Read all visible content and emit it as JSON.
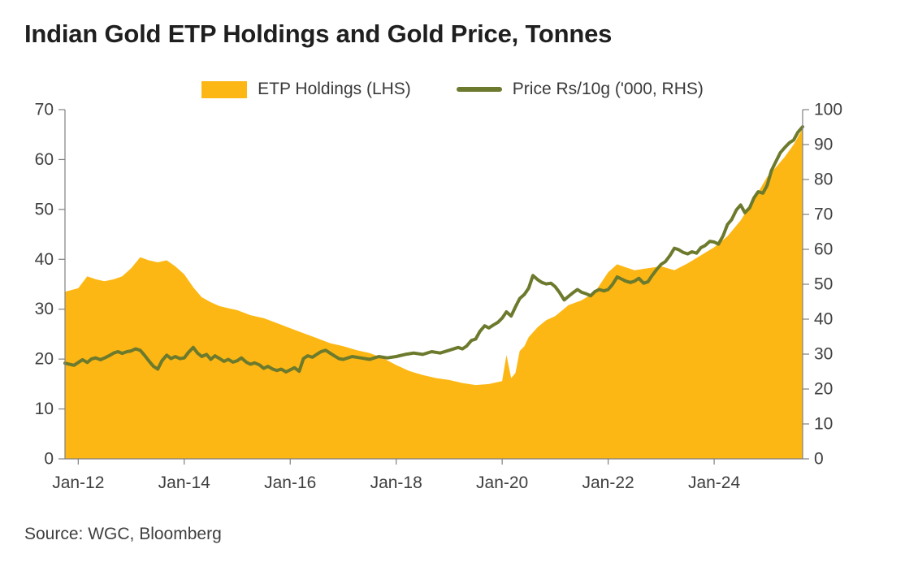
{
  "title": "Indian Gold ETP Holdings and Gold Price, Tonnes",
  "source": "Source: WGC, Bloomberg",
  "legend": [
    {
      "label": "ETP Holdings (LHS)",
      "color": "#FCB714",
      "shape": "area-swatch"
    },
    {
      "label": "Price Rs/10g ('000, RHS)",
      "color": "#6C7A2D",
      "shape": "line-swatch"
    }
  ],
  "colors": {
    "axis_line": "#808080",
    "axis_text": "#3F3F3F",
    "title_text": "#1F1F1F",
    "background": "#FFFFFF",
    "area": "#FCB714",
    "line": "#6C7A2D"
  },
  "chart_data": {
    "type": "area+line",
    "title": "Indian Gold ETP Holdings and Gold Price, Tonnes",
    "grid": false,
    "legend_position": "top",
    "x_axis": {
      "range": [
        2011.75,
        2025.67
      ],
      "tick_values": [
        2012,
        2014,
        2016,
        2018,
        2020,
        2022,
        2024
      ],
      "tick_labels": [
        "Jan-12",
        "Jan-14",
        "Jan-16",
        "Jan-18",
        "Jan-20",
        "Jan-22",
        "Jan-24"
      ]
    },
    "left_axis": {
      "series": "ETP Holdings (LHS)",
      "unit": "tonnes",
      "range": [
        0,
        70
      ],
      "ticks": [
        0,
        10,
        20,
        30,
        40,
        50,
        60,
        70
      ]
    },
    "right_axis": {
      "series": "Price Rs/10g ('000, RHS)",
      "unit": "'000 Rs per 10g",
      "range": [
        0,
        100
      ],
      "ticks": [
        0,
        10,
        20,
        30,
        40,
        50,
        60,
        70,
        80,
        90,
        100
      ]
    },
    "series": [
      {
        "name": "ETP Holdings (LHS)",
        "type": "area",
        "axis": "left",
        "color": "#FCB714",
        "points": [
          [
            2011.75,
            33.5
          ],
          [
            2012.0,
            34.2
          ],
          [
            2012.17,
            36.6
          ],
          [
            2012.33,
            36.0
          ],
          [
            2012.5,
            35.6
          ],
          [
            2012.67,
            36.0
          ],
          [
            2012.83,
            36.6
          ],
          [
            2013.0,
            38.2
          ],
          [
            2013.17,
            40.4
          ],
          [
            2013.33,
            39.8
          ],
          [
            2013.5,
            39.4
          ],
          [
            2013.67,
            39.8
          ],
          [
            2013.83,
            38.6
          ],
          [
            2014.0,
            37.0
          ],
          [
            2014.17,
            34.4
          ],
          [
            2014.33,
            32.4
          ],
          [
            2014.5,
            31.4
          ],
          [
            2014.67,
            30.6
          ],
          [
            2014.83,
            30.2
          ],
          [
            2015.0,
            29.8
          ],
          [
            2015.25,
            28.8
          ],
          [
            2015.5,
            28.2
          ],
          [
            2015.75,
            27.2
          ],
          [
            2016.0,
            26.2
          ],
          [
            2016.25,
            25.2
          ],
          [
            2016.5,
            24.2
          ],
          [
            2016.75,
            23.2
          ],
          [
            2017.0,
            22.6
          ],
          [
            2017.25,
            21.8
          ],
          [
            2017.5,
            21.2
          ],
          [
            2017.75,
            20.2
          ],
          [
            2018.0,
            18.8
          ],
          [
            2018.25,
            17.6
          ],
          [
            2018.5,
            16.8
          ],
          [
            2018.75,
            16.2
          ],
          [
            2019.0,
            15.8
          ],
          [
            2019.25,
            15.2
          ],
          [
            2019.5,
            14.8
          ],
          [
            2019.75,
            15.0
          ],
          [
            2020.0,
            15.6
          ],
          [
            2020.08,
            20.8
          ],
          [
            2020.17,
            16.2
          ],
          [
            2020.25,
            17.2
          ],
          [
            2020.33,
            21.6
          ],
          [
            2020.42,
            22.6
          ],
          [
            2020.5,
            24.4
          ],
          [
            2020.67,
            26.4
          ],
          [
            2020.83,
            27.8
          ],
          [
            2021.0,
            28.6
          ],
          [
            2021.25,
            30.8
          ],
          [
            2021.5,
            31.8
          ],
          [
            2021.75,
            33.4
          ],
          [
            2022.0,
            37.4
          ],
          [
            2022.17,
            39.0
          ],
          [
            2022.33,
            38.4
          ],
          [
            2022.5,
            37.8
          ],
          [
            2022.75,
            38.2
          ],
          [
            2023.0,
            38.6
          ],
          [
            2023.25,
            37.8
          ],
          [
            2023.5,
            39.2
          ],
          [
            2023.75,
            40.8
          ],
          [
            2024.0,
            42.4
          ],
          [
            2024.25,
            44.6
          ],
          [
            2024.5,
            47.8
          ],
          [
            2024.75,
            52.0
          ],
          [
            2025.0,
            56.5
          ],
          [
            2025.17,
            58.5
          ],
          [
            2025.33,
            60.5
          ],
          [
            2025.5,
            63.0
          ],
          [
            2025.67,
            66.2
          ]
        ]
      },
      {
        "name": "Price Rs/10g ('000, RHS)",
        "type": "line",
        "axis": "right",
        "color": "#6C7A2D",
        "stroke_width": 4,
        "points": [
          [
            2011.75,
            27.4
          ],
          [
            2011.92,
            26.8
          ],
          [
            2012.0,
            27.6
          ],
          [
            2012.08,
            28.4
          ],
          [
            2012.17,
            27.6
          ],
          [
            2012.25,
            28.6
          ],
          [
            2012.33,
            28.9
          ],
          [
            2012.42,
            28.4
          ],
          [
            2012.5,
            28.9
          ],
          [
            2012.58,
            29.5
          ],
          [
            2012.67,
            30.3
          ],
          [
            2012.75,
            30.7
          ],
          [
            2012.83,
            30.2
          ],
          [
            2012.92,
            30.7
          ],
          [
            2013.0,
            30.9
          ],
          [
            2013.08,
            31.5
          ],
          [
            2013.17,
            31.1
          ],
          [
            2013.25,
            29.7
          ],
          [
            2013.33,
            28.1
          ],
          [
            2013.42,
            26.5
          ],
          [
            2013.5,
            25.7
          ],
          [
            2013.58,
            28.1
          ],
          [
            2013.67,
            29.7
          ],
          [
            2013.75,
            28.7
          ],
          [
            2013.83,
            29.3
          ],
          [
            2013.92,
            28.7
          ],
          [
            2014.0,
            28.9
          ],
          [
            2014.08,
            30.5
          ],
          [
            2014.17,
            31.9
          ],
          [
            2014.25,
            30.3
          ],
          [
            2014.33,
            29.3
          ],
          [
            2014.42,
            29.9
          ],
          [
            2014.5,
            28.5
          ],
          [
            2014.58,
            29.5
          ],
          [
            2014.67,
            28.7
          ],
          [
            2014.75,
            27.9
          ],
          [
            2014.83,
            28.5
          ],
          [
            2014.92,
            27.7
          ],
          [
            2015.0,
            28.1
          ],
          [
            2015.08,
            28.9
          ],
          [
            2015.17,
            27.7
          ],
          [
            2015.25,
            27.1
          ],
          [
            2015.33,
            27.5
          ],
          [
            2015.42,
            26.9
          ],
          [
            2015.5,
            25.9
          ],
          [
            2015.58,
            26.5
          ],
          [
            2015.67,
            25.7
          ],
          [
            2015.75,
            25.3
          ],
          [
            2015.83,
            25.7
          ],
          [
            2015.92,
            24.9
          ],
          [
            2016.0,
            25.5
          ],
          [
            2016.08,
            26.1
          ],
          [
            2016.17,
            25.1
          ],
          [
            2016.25,
            28.7
          ],
          [
            2016.33,
            29.5
          ],
          [
            2016.42,
            29.1
          ],
          [
            2016.5,
            29.9
          ],
          [
            2016.58,
            30.7
          ],
          [
            2016.67,
            31.1
          ],
          [
            2016.75,
            30.3
          ],
          [
            2016.83,
            29.5
          ],
          [
            2016.92,
            28.7
          ],
          [
            2017.0,
            28.5
          ],
          [
            2017.17,
            29.3
          ],
          [
            2017.33,
            28.9
          ],
          [
            2017.5,
            28.5
          ],
          [
            2017.67,
            29.3
          ],
          [
            2017.83,
            28.9
          ],
          [
            2018.0,
            29.3
          ],
          [
            2018.17,
            29.9
          ],
          [
            2018.33,
            30.3
          ],
          [
            2018.5,
            29.9
          ],
          [
            2018.67,
            30.7
          ],
          [
            2018.83,
            30.3
          ],
          [
            2019.0,
            31.1
          ],
          [
            2019.17,
            31.9
          ],
          [
            2019.25,
            31.5
          ],
          [
            2019.33,
            32.3
          ],
          [
            2019.42,
            33.9
          ],
          [
            2019.5,
            34.3
          ],
          [
            2019.58,
            36.5
          ],
          [
            2019.67,
            38.1
          ],
          [
            2019.75,
            37.5
          ],
          [
            2019.83,
            38.3
          ],
          [
            2019.92,
            39.1
          ],
          [
            2020.0,
            40.3
          ],
          [
            2020.08,
            42.1
          ],
          [
            2020.17,
            40.9
          ],
          [
            2020.25,
            43.5
          ],
          [
            2020.33,
            45.9
          ],
          [
            2020.42,
            47.1
          ],
          [
            2020.5,
            48.9
          ],
          [
            2020.58,
            52.5
          ],
          [
            2020.67,
            51.3
          ],
          [
            2020.75,
            50.5
          ],
          [
            2020.83,
            50.1
          ],
          [
            2020.92,
            50.3
          ],
          [
            2021.0,
            49.3
          ],
          [
            2021.08,
            47.7
          ],
          [
            2021.17,
            45.5
          ],
          [
            2021.25,
            46.5
          ],
          [
            2021.33,
            47.5
          ],
          [
            2021.42,
            48.5
          ],
          [
            2021.5,
            47.7
          ],
          [
            2021.58,
            47.3
          ],
          [
            2021.67,
            46.7
          ],
          [
            2021.75,
            47.9
          ],
          [
            2021.83,
            48.5
          ],
          [
            2021.92,
            48.1
          ],
          [
            2022.0,
            48.5
          ],
          [
            2022.08,
            49.9
          ],
          [
            2022.17,
            52.1
          ],
          [
            2022.25,
            51.5
          ],
          [
            2022.33,
            50.9
          ],
          [
            2022.42,
            50.5
          ],
          [
            2022.5,
            50.9
          ],
          [
            2022.58,
            51.7
          ],
          [
            2022.67,
            50.3
          ],
          [
            2022.75,
            50.7
          ],
          [
            2022.83,
            52.5
          ],
          [
            2022.92,
            54.3
          ],
          [
            2023.0,
            55.7
          ],
          [
            2023.08,
            56.5
          ],
          [
            2023.17,
            58.3
          ],
          [
            2023.25,
            60.3
          ],
          [
            2023.33,
            59.9
          ],
          [
            2023.42,
            59.1
          ],
          [
            2023.5,
            58.7
          ],
          [
            2023.58,
            59.3
          ],
          [
            2023.67,
            58.9
          ],
          [
            2023.75,
            60.5
          ],
          [
            2023.83,
            61.1
          ],
          [
            2023.92,
            62.3
          ],
          [
            2024.0,
            62.1
          ],
          [
            2024.08,
            61.5
          ],
          [
            2024.17,
            63.9
          ],
          [
            2024.25,
            67.1
          ],
          [
            2024.33,
            68.5
          ],
          [
            2024.42,
            71.3
          ],
          [
            2024.5,
            72.7
          ],
          [
            2024.58,
            70.5
          ],
          [
            2024.67,
            71.9
          ],
          [
            2024.75,
            74.7
          ],
          [
            2024.83,
            76.5
          ],
          [
            2024.92,
            76.1
          ],
          [
            2025.0,
            78.3
          ],
          [
            2025.08,
            82.5
          ],
          [
            2025.17,
            85.3
          ],
          [
            2025.25,
            87.7
          ],
          [
            2025.33,
            89.1
          ],
          [
            2025.42,
            90.5
          ],
          [
            2025.5,
            91.3
          ],
          [
            2025.58,
            93.5
          ],
          [
            2025.67,
            95.1
          ]
        ]
      }
    ]
  }
}
